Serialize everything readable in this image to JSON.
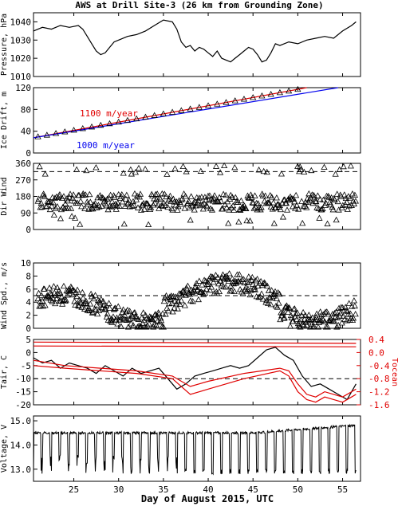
{
  "chart_data": {
    "title": "AWS at Drill Site-3 (26 km from Grounding Zone)",
    "xlabel": "Day of August 2015, UTC",
    "xlim": [
      20.5,
      57
    ],
    "xticks": [
      "25",
      "30",
      "35",
      "40",
      "45",
      "50",
      "55"
    ],
    "panels": [
      {
        "type": "line",
        "ylabel": "Pressure, hPa",
        "ylim": [
          1010,
          1045
        ],
        "yticks": [
          "1010",
          "1020",
          "1030",
          "1040"
        ],
        "series": [
          {
            "x": [
              20.5,
              21.5,
              22.5,
              23.5,
              24.5,
              25.5,
              26,
              26.5,
              27,
              27.5,
              28,
              28.5,
              29,
              29.5,
              30,
              31,
              32,
              33,
              34,
              35,
              36,
              36.5,
              37,
              37.5,
              38,
              38.5,
              39,
              39.5,
              40,
              40.5,
              41,
              41.5,
              42,
              42.5,
              43,
              43.5,
              44,
              44.5,
              45,
              45.5,
              46,
              46.5,
              47,
              47.5,
              48,
              49,
              50,
              51,
              52,
              53,
              54,
              55,
              56,
              56.5
            ],
            "y": [
              1035,
              1037,
              1036,
              1038,
              1037,
              1038,
              1036,
              1032,
              1028,
              1024,
              1022,
              1023,
              1026,
              1029,
              1030,
              1032,
              1033,
              1035,
              1038,
              1041,
              1040,
              1036,
              1029,
              1026,
              1027,
              1024,
              1026,
              1025,
              1023,
              1021,
              1024,
              1020,
              1019,
              1018,
              1020,
              1022,
              1024,
              1026,
              1025,
              1022,
              1018,
              1019,
              1023,
              1028,
              1027,
              1029,
              1028,
              1030,
              1031,
              1032,
              1031,
              1035,
              1038,
              1040
            ]
          }
        ]
      },
      {
        "type": "scatter+line",
        "ylabel": "Ice Drift, m",
        "ylim": [
          0,
          120
        ],
        "yticks": [
          "0",
          "40",
          "80",
          "120"
        ],
        "annotations": [
          {
            "text": "1100 m/year",
            "color": "#e00000"
          },
          {
            "text": "1000 m/year",
            "color": "#0000ee"
          }
        ],
        "series": [
          {
            "name": "1100 m/year",
            "color": "#e00000",
            "x": [
              20.5,
              51
            ],
            "y": [
              28,
              120
            ]
          },
          {
            "name": "1000 m/year",
            "color": "#0000ee",
            "x": [
              20.5,
              54.5
            ],
            "y": [
              28,
              120
            ]
          },
          {
            "color": "#000000",
            "x": [
              21,
              22,
              23,
              24,
              25,
              26,
              27,
              28,
              29,
              30,
              31,
              32,
              33,
              34,
              35,
              36,
              37,
              38,
              39,
              40,
              41,
              42,
              43,
              44,
              45,
              46,
              47,
              48,
              49,
              50
            ],
            "y": [
              30,
              33,
              36,
              39,
              42,
              45,
              48,
              51,
              54,
              57,
              60,
              63,
              66,
              69,
              72,
              75,
              78,
              81,
              84,
              87,
              90,
              93,
              96,
              99,
              102,
              105,
              108,
              111,
              114,
              117
            ]
          }
        ]
      },
      {
        "type": "scatter",
        "ylabel": "Dir Wind",
        "ylim": [
          0,
          360
        ],
        "yticks": [
          "0",
          "90",
          "180",
          "270",
          "360"
        ],
        "reference_line": 315
      },
      {
        "type": "scatter",
        "ylabel": "Wind Spd., m/s",
        "ylim": [
          0,
          10
        ],
        "yticks": [
          "0",
          "2",
          "4",
          "6",
          "8",
          "10"
        ],
        "reference_line": 5
      },
      {
        "type": "line",
        "ylabel": "Tair, C",
        "ylim": [
          -20,
          5
        ],
        "yticks": [
          "-20",
          "-15",
          "-10",
          "-5",
          "0",
          "5"
        ],
        "reference_line": -10,
        "right_axis": {
          "label": "Tocean",
          "color": "#e00000",
          "ylim": [
            -1.6,
            0.4
          ],
          "yticks": [
            "0.4",
            "0.0",
            "-0.4",
            "-0.8",
            "-1.2",
            "-1.6"
          ]
        },
        "series": [
          {
            "color": "#000000",
            "x": [
              20.5,
              21.5,
              22.5,
              23.5,
              24.5,
              25.5,
              26.5,
              27.5,
              28.5,
              29.5,
              30.5,
              31.5,
              32.5,
              33.5,
              34.5,
              35.5,
              36.5,
              37.5,
              38.5,
              39.5,
              40.5,
              41.5,
              42.5,
              43.5,
              44.5,
              45.5,
              46.5,
              47.5,
              48.5,
              49.5,
              50.5,
              51.5,
              52.5,
              53.5,
              54.5,
              55.5,
              56.5
            ],
            "y": [
              -2,
              -4,
              -3,
              -6,
              -4,
              -5,
              -6,
              -8,
              -5,
              -7,
              -9,
              -6,
              -8,
              -7,
              -6,
              -10,
              -14,
              -12,
              -9,
              -8,
              -7,
              -6,
              -5,
              -6,
              -5,
              -2,
              1,
              2,
              -1,
              -3,
              -9,
              -13,
              -12,
              -14,
              -16,
              -18,
              -12
            ]
          },
          {
            "color": "#e00000",
            "x": [
              20.5,
              24,
              28,
              32,
              36,
              38,
              40,
              44,
              48,
              49,
              50,
              51,
              52,
              53,
              54,
              55,
              56,
              56.5
            ],
            "y": [
              -3,
              -5,
              -6,
              -7,
              -9,
              -13,
              -11,
              -8,
              -6,
              -7,
              -12,
              -16,
              -17,
              -15,
              -16,
              -17,
              -15,
              -14
            ]
          },
          {
            "color": "#e00000",
            "x": [
              20.5,
              24,
              28,
              32,
              36,
              38,
              40,
              44,
              48,
              49,
              50,
              51,
              52,
              53,
              54,
              55,
              56,
              56.5
            ],
            "y": [
              -5,
              -6,
              -7,
              -8,
              -10,
              -16,
              -14,
              -10,
              -7,
              -9,
              -15,
              -18,
              -19,
              -17,
              -18,
              -19,
              -17,
              -16
            ]
          },
          {
            "color": "#e00000",
            "x": [
              20.5,
              56.5
            ],
            "y": [
              4,
              3.5
            ]
          },
          {
            "color": "#e00000",
            "x": [
              20.5,
              56.5
            ],
            "y": [
              2.5,
              2.2
            ]
          }
        ]
      },
      {
        "type": "line",
        "ylabel": "Voltage, V",
        "ylim": [
          12.5,
          15.2
        ],
        "yticks": [
          "13.0",
          "14.0",
          "15.0"
        ],
        "series": [
          {
            "x": [
              20.5,
              56.5
            ],
            "y_high": 14.5,
            "y_low": 12.8
          }
        ]
      }
    ]
  }
}
